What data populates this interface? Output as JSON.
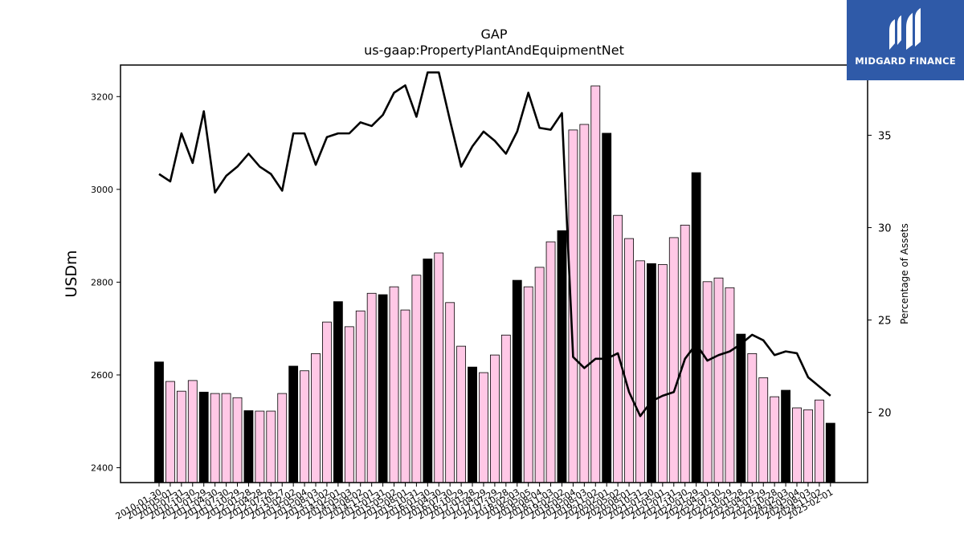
{
  "logo": {
    "text": "MIDGARD FINANCE",
    "bg_color": "#2f5aa8"
  },
  "chart_data": {
    "type": "bar",
    "title": "GAP",
    "subtitle": "us-gaap:PropertyPlantAndEquipmentNet",
    "ylabel": "USDm",
    "ylabel_right": "Percentage of Assets",
    "ylim": [
      2368,
      3268
    ],
    "ylim_right": [
      16.2,
      38.8
    ],
    "yticks": [
      2400,
      2600,
      2800,
      3000,
      3200
    ],
    "yticks_right": [
      20,
      25,
      30,
      35
    ],
    "colors": {
      "annual": "#000000",
      "quarterly": "#ffc8e6",
      "line": "#000000"
    },
    "xtick_labels": [
      "2010-01-30",
      "2010-05-01",
      "2010-07-31",
      "2010-10-30",
      "2011-01-29",
      "2011-04-30",
      "2011-07-30",
      "2011-10-29",
      "2012-01-28",
      "2012-04-28",
      "2012-07-28",
      "2012-10-27",
      "2013-02-02",
      "2013-05-04",
      "2013-08-03",
      "2013-11-02",
      "2014-02-01",
      "2014-05-03",
      "2014-08-02",
      "2014-11-01",
      "2015-01-31",
      "2015-05-02",
      "2015-08-01",
      "2015-10-31",
      "2016-01-30",
      "2016-04-30",
      "2016-07-30",
      "2016-10-29",
      "2017-01-28",
      "2017-04-29",
      "2017-07-29",
      "2017-10-28",
      "2018-02-03",
      "2018-05-05",
      "2018-08-04",
      "2018-11-03",
      "2019-02-02",
      "2019-05-04",
      "2019-08-03",
      "2019-11-02",
      "2020-02-01",
      "2020-05-02",
      "2020-08-01",
      "2020-10-31",
      "2021-01-30",
      "2021-05-01",
      "2021-07-31",
      "2021-10-30",
      "2022-01-29",
      "2022-04-30",
      "2022-07-30",
      "2022-10-29",
      "2023-01-28",
      "2023-04-29",
      "2023-07-29",
      "2023-10-28",
      "2024-02-03",
      "2024-05-04",
      "2024-08-03",
      "2024-11-02",
      "2025-02-01"
    ],
    "bar_values": [
      2628,
      2586,
      2565,
      2588,
      2563,
      2560,
      2560,
      2551,
      2523,
      2522,
      2522,
      2560,
      2619,
      2609,
      2646,
      2714,
      2758,
      2704,
      2738,
      2776,
      2773,
      2790,
      2740,
      2815,
      2850,
      2863,
      2756,
      2662,
      2617,
      2605,
      2643,
      2686,
      2804,
      2790,
      2832,
      2887,
      2911,
      3128,
      3140,
      3223,
      3121,
      2944,
      2894,
      2846,
      2840,
      2838,
      2896,
      2923,
      3036,
      2801,
      2809,
      2788,
      2688,
      2646,
      2594,
      2553,
      2567,
      2529,
      2525,
      2546,
      2496
    ],
    "bar_is_annual": [
      true,
      false,
      false,
      false,
      true,
      false,
      false,
      false,
      true,
      false,
      false,
      false,
      true,
      false,
      false,
      false,
      true,
      false,
      false,
      false,
      true,
      false,
      false,
      false,
      true,
      false,
      false,
      false,
      true,
      false,
      false,
      false,
      true,
      false,
      false,
      false,
      true,
      false,
      false,
      false,
      true,
      false,
      false,
      false,
      true,
      false,
      false,
      false,
      true,
      false,
      false,
      false,
      true,
      false,
      false,
      false,
      true,
      false,
      false,
      false,
      true
    ],
    "line_name": "Percentage of Assets",
    "line_values": [
      32.9,
      32.5,
      35.1,
      33.5,
      36.3,
      31.9,
      32.8,
      33.3,
      34.0,
      33.3,
      32.9,
      32.0,
      35.1,
      35.1,
      33.4,
      34.9,
      35.1,
      35.1,
      35.7,
      35.5,
      36.1,
      37.3,
      37.7,
      36.0,
      38.4,
      38.4,
      35.8,
      33.3,
      34.4,
      35.2,
      34.7,
      34.0,
      35.2,
      37.3,
      35.4,
      35.3,
      36.2,
      23.0,
      22.4,
      22.9,
      22.9,
      23.2,
      21.1,
      19.8,
      20.6,
      20.9,
      21.1,
      22.9,
      23.7,
      22.8,
      23.1,
      23.3,
      23.7,
      24.2,
      23.9,
      23.1,
      23.3,
      23.2,
      21.9,
      21.4,
      20.9
    ]
  }
}
